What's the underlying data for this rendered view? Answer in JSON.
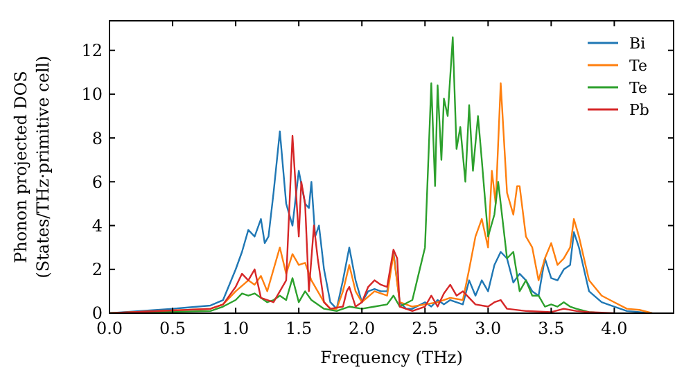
{
  "chart_data": {
    "type": "line",
    "xlabel": "Frequency (THz)",
    "ylabel": "Phonon projected DOS\n(States/THz·primitive cell)",
    "xlim": [
      0,
      4.47
    ],
    "ylim": [
      0,
      13.35
    ],
    "xticks": [
      {
        "value": 0,
        "label": "0.0"
      },
      {
        "value": 0.5,
        "label": "0.5"
      },
      {
        "value": 1,
        "label": "1.0"
      },
      {
        "value": 1.5,
        "label": "1.5"
      },
      {
        "value": 2,
        "label": "2.0"
      },
      {
        "value": 2.5,
        "label": "2.5"
      },
      {
        "value": 3,
        "label": "3.0"
      },
      {
        "value": 3.5,
        "label": "3.5"
      },
      {
        "value": 4,
        "label": "4.0"
      }
    ],
    "yticks": [
      0,
      2,
      4,
      6,
      8,
      10,
      12
    ],
    "grid": false,
    "legend": "top right",
    "marker": "none",
    "line_style": "solid",
    "series": [
      {
        "name": "Bi",
        "color": "#1f77b4",
        "x": [
          0,
          0.5,
          0.8,
          0.9,
          1.0,
          1.05,
          1.1,
          1.15,
          1.2,
          1.23,
          1.26,
          1.3,
          1.35,
          1.4,
          1.45,
          1.5,
          1.55,
          1.58,
          1.6,
          1.63,
          1.66,
          1.7,
          1.75,
          1.8,
          1.85,
          1.9,
          1.95,
          2.0,
          2.05,
          2.1,
          2.15,
          2.2,
          2.25,
          2.3,
          2.35,
          2.4,
          2.5,
          2.55,
          2.6,
          2.65,
          2.7,
          2.8,
          2.85,
          2.9,
          2.95,
          3.0,
          3.05,
          3.1,
          3.15,
          3.2,
          3.25,
          3.3,
          3.35,
          3.4,
          3.45,
          3.5,
          3.55,
          3.6,
          3.65,
          3.68,
          3.72,
          3.8,
          3.9,
          4.0,
          4.1,
          4.2,
          4.3
        ],
        "values": [
          0,
          0.2,
          0.35,
          0.6,
          2.0,
          2.8,
          3.8,
          3.5,
          4.3,
          3.2,
          3.5,
          5.5,
          8.3,
          5.0,
          4.0,
          6.5,
          5.0,
          4.8,
          6.0,
          3.5,
          4.0,
          2.0,
          0.5,
          0.2,
          1.5,
          3.0,
          1.5,
          0.5,
          1.0,
          1.1,
          1.0,
          1.0,
          2.8,
          0.5,
          0.2,
          0.2,
          0.5,
          0.3,
          0.6,
          0.4,
          0.6,
          0.4,
          1.5,
          0.8,
          1.5,
          1.0,
          2.2,
          2.8,
          2.5,
          1.4,
          1.8,
          1.5,
          1.0,
          0.8,
          2.5,
          1.6,
          1.5,
          2.0,
          2.2,
          3.7,
          3.0,
          1.0,
          0.5,
          0.3,
          0.1,
          0.05,
          0
        ]
      },
      {
        "name": "Te",
        "color": "#ff7f0e",
        "x": [
          0,
          0.8,
          0.9,
          1.0,
          1.1,
          1.15,
          1.2,
          1.25,
          1.3,
          1.35,
          1.4,
          1.45,
          1.5,
          1.55,
          1.6,
          1.65,
          1.7,
          1.75,
          1.8,
          1.85,
          1.9,
          1.95,
          2.0,
          2.1,
          2.2,
          2.25,
          2.3,
          2.4,
          2.5,
          2.6,
          2.7,
          2.8,
          2.85,
          2.9,
          2.95,
          3.0,
          3.03,
          3.06,
          3.1,
          3.15,
          3.2,
          3.23,
          3.25,
          3.3,
          3.35,
          3.4,
          3.45,
          3.5,
          3.55,
          3.6,
          3.65,
          3.68,
          3.72,
          3.8,
          3.9,
          4.0,
          4.1,
          4.2,
          4.3
        ],
        "values": [
          0,
          0.2,
          0.4,
          1.0,
          1.5,
          1.3,
          1.7,
          1.0,
          2.0,
          3.0,
          1.8,
          2.7,
          2.2,
          2.3,
          1.5,
          1.0,
          0.5,
          0.2,
          0.2,
          1.0,
          2.2,
          1.0,
          0.5,
          1.0,
          0.8,
          2.7,
          0.5,
          0.3,
          0.4,
          0.5,
          0.7,
          0.6,
          2.0,
          3.5,
          4.3,
          3.0,
          6.5,
          5.0,
          10.5,
          5.5,
          4.5,
          5.8,
          5.8,
          3.5,
          3.0,
          1.5,
          2.5,
          3.2,
          2.2,
          2.5,
          3.0,
          4.3,
          3.5,
          1.5,
          0.8,
          0.5,
          0.2,
          0.15,
          0
        ]
      },
      {
        "name": "Te",
        "color": "#2ca02c",
        "x": [
          0,
          0.8,
          0.9,
          1.0,
          1.05,
          1.1,
          1.15,
          1.2,
          1.25,
          1.3,
          1.35,
          1.4,
          1.45,
          1.5,
          1.55,
          1.6,
          1.7,
          1.8,
          1.9,
          2.0,
          2.1,
          2.2,
          2.25,
          2.3,
          2.4,
          2.45,
          2.5,
          2.55,
          2.58,
          2.6,
          2.63,
          2.65,
          2.68,
          2.72,
          2.75,
          2.78,
          2.82,
          2.85,
          2.88,
          2.92,
          2.95,
          3.0,
          3.05,
          3.08,
          3.12,
          3.15,
          3.2,
          3.25,
          3.3,
          3.35,
          3.4,
          3.45,
          3.5,
          3.55,
          3.6,
          3.65,
          3.7,
          3.8,
          3.9
        ],
        "values": [
          0,
          0.1,
          0.3,
          0.6,
          0.9,
          0.8,
          0.9,
          0.7,
          0.5,
          0.6,
          0.8,
          0.6,
          1.6,
          0.5,
          1.0,
          0.6,
          0.2,
          0.1,
          0.3,
          0.2,
          0.3,
          0.4,
          0.8,
          0.3,
          0.6,
          1.8,
          3.0,
          10.5,
          5.8,
          10.4,
          7.0,
          9.8,
          9.0,
          12.6,
          7.5,
          8.5,
          6.0,
          9.5,
          6.5,
          9.0,
          7.0,
          3.5,
          4.5,
          6.0,
          4.0,
          2.5,
          2.8,
          1.0,
          1.5,
          0.8,
          0.8,
          0.3,
          0.4,
          0.3,
          0.5,
          0.3,
          0.2,
          0.05,
          0
        ]
      },
      {
        "name": "Pb",
        "color": "#d62728",
        "x": [
          0,
          0.8,
          0.9,
          1.0,
          1.05,
          1.1,
          1.15,
          1.2,
          1.3,
          1.4,
          1.45,
          1.5,
          1.52,
          1.55,
          1.58,
          1.62,
          1.65,
          1.7,
          1.75,
          1.85,
          1.88,
          1.9,
          1.95,
          2.0,
          2.05,
          2.1,
          2.15,
          2.2,
          2.25,
          2.28,
          2.3,
          2.4,
          2.5,
          2.55,
          2.6,
          2.65,
          2.7,
          2.75,
          2.8,
          2.9,
          3.0,
          3.05,
          3.1,
          3.15,
          3.3,
          3.5,
          3.6,
          3.7,
          3.8,
          4.0
        ],
        "values": [
          0,
          0.2,
          0.4,
          1.2,
          1.8,
          1.5,
          2.0,
          0.7,
          0.5,
          1.5,
          8.1,
          3.5,
          6.0,
          5.0,
          1.0,
          4.0,
          2.5,
          0.5,
          0.2,
          0.3,
          1.0,
          1.2,
          0.3,
          0.5,
          1.2,
          1.5,
          1.3,
          1.2,
          2.9,
          2.5,
          0.3,
          0.1,
          0.3,
          0.8,
          0.3,
          0.9,
          1.3,
          0.8,
          1.0,
          0.4,
          0.3,
          0.5,
          0.6,
          0.2,
          0.1,
          0.05,
          0.2,
          0.1,
          0.05,
          0
        ]
      }
    ]
  }
}
